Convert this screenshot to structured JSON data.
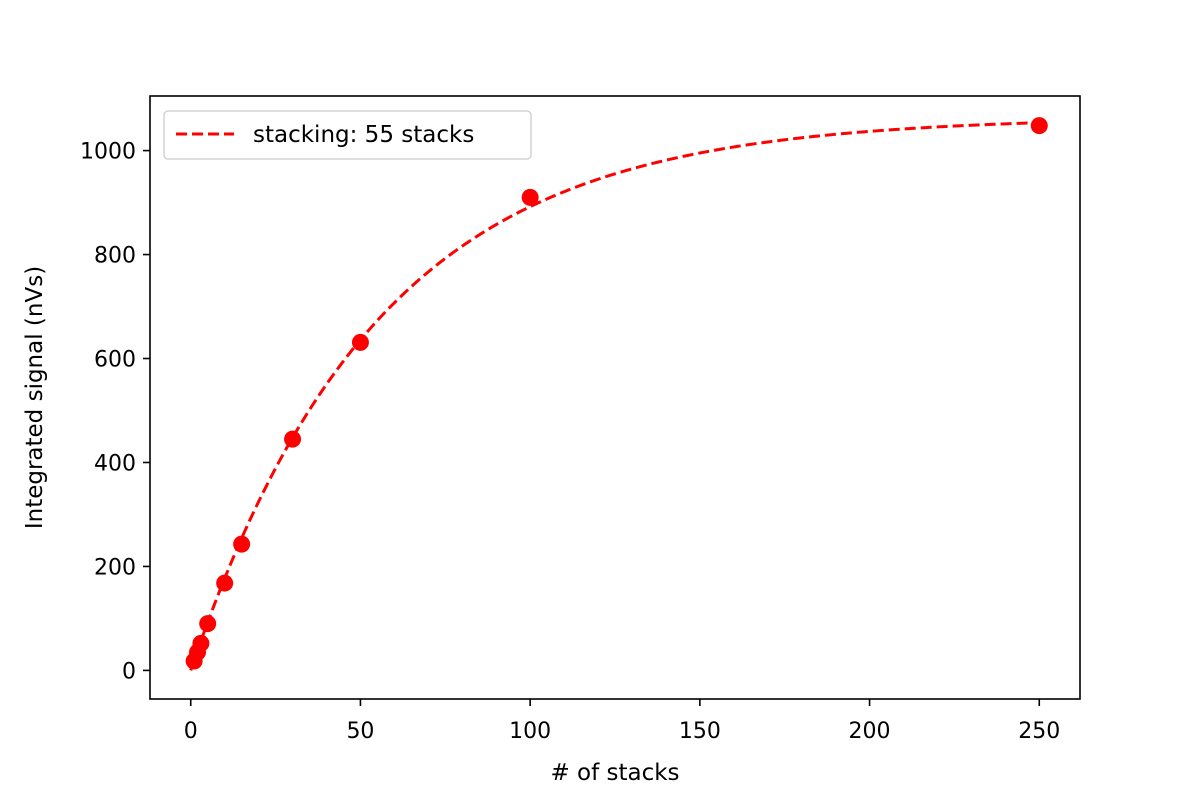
{
  "chart_data": {
    "type": "scatter",
    "xlabel": "# of stacks",
    "ylabel": "Integrated signal (nVs)",
    "xlim": [
      -12,
      262
    ],
    "ylim": [
      -55,
      1105
    ],
    "x_ticks": [
      0,
      50,
      100,
      150,
      200,
      250
    ],
    "y_ticks": [
      0,
      200,
      400,
      600,
      800,
      1000
    ],
    "x_tick_labels": [
      "0",
      "50",
      "100",
      "150",
      "200",
      "250"
    ],
    "y_tick_labels": [
      "0",
      "200",
      "400",
      "600",
      "800",
      "1000"
    ],
    "grid": false,
    "legend_position": "top-left",
    "series": [
      {
        "name": "stacking: 55 stacks",
        "style": "dashed-line",
        "color": "#ff0000",
        "model": {
          "form": "A*(1-exp(-x/tau))",
          "A": 1065,
          "tau": 55
        },
        "x_range": [
          0,
          250
        ]
      },
      {
        "style": "markers",
        "color": "#ff0000",
        "x": [
          1,
          2,
          3,
          5,
          10,
          15,
          30,
          50,
          100,
          250
        ],
        "y": [
          18,
          35,
          52,
          90,
          168,
          243,
          445,
          631,
          910,
          1048
        ]
      }
    ]
  }
}
